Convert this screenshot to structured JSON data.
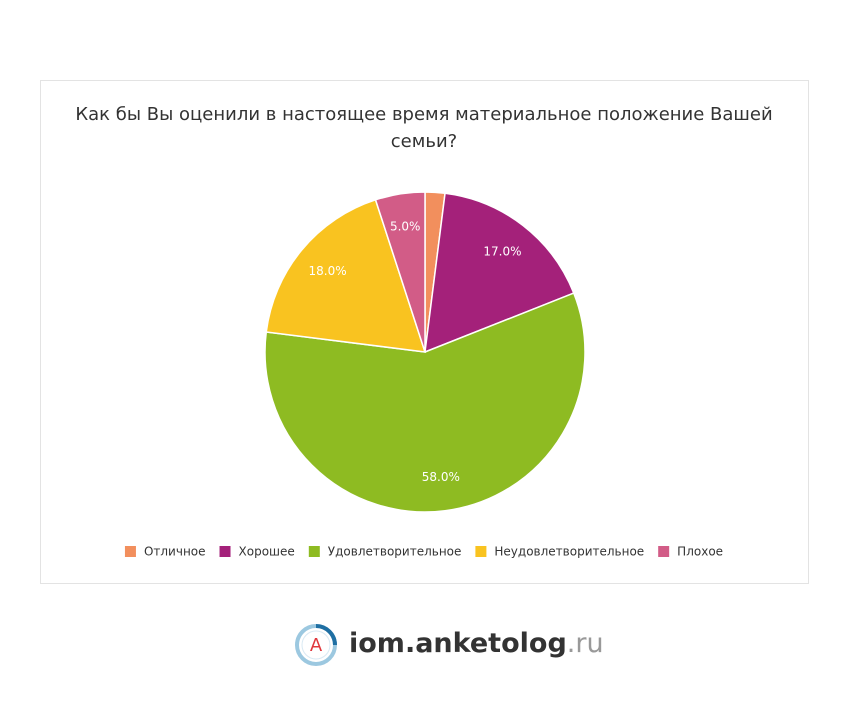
{
  "chart_data": {
    "type": "pie",
    "title": "Как бы Вы оценили в настоящее время материальное положение Вашей семьи?",
    "categories": [
      "Отличное",
      "Хорошее",
      "Удовлетворительное",
      "Неудовлетворительное",
      "Плохое"
    ],
    "values": [
      2,
      17,
      58,
      18,
      5
    ],
    "value_labels": [
      null,
      "17.0%",
      "58.0%",
      "18.0%",
      "5.0%"
    ],
    "colors": [
      "#f28f5d",
      "#a4217a",
      "#8ebb22",
      "#f9c320",
      "#d25c87"
    ],
    "legend": "bottom"
  },
  "footer": {
    "logo_letter": "A",
    "site": "iom.anketolog",
    "tld": ".ru"
  }
}
